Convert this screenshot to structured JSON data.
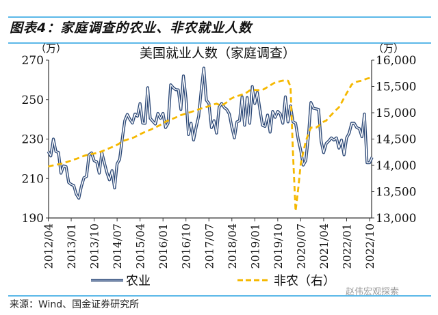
{
  "figure_title": "图表4：家庭调查的农业、非农就业人数",
  "source": "来源：Wind、国金证券研究所",
  "watermark": "赵伟宏观探索",
  "chart_data": {
    "type": "line",
    "title": "美国就业人数（家庭调查）",
    "left_unit": "（万）",
    "right_unit": "（万）",
    "x_start": "2012/04",
    "x_end": "2022/11",
    "frequency": "monthly",
    "x_tick_labels": [
      "2012/04",
      "2013/01",
      "2013/10",
      "2014/07",
      "2015/04",
      "2016/01",
      "2016/10",
      "2017/07",
      "2018/04",
      "2019/01",
      "2019/10",
      "2020/07",
      "2021/04",
      "2022/01",
      "2022/10"
    ],
    "x_tick_step_months": 9,
    "y_left": {
      "range": [
        190,
        270
      ],
      "ticks": [
        "190",
        "210",
        "230",
        "250",
        "270"
      ]
    },
    "y_right": {
      "range": [
        13000,
        16000
      ],
      "ticks": [
        "13,000",
        "13,500",
        "14,000",
        "14,500",
        "15,000",
        "15,500",
        "16,000"
      ]
    },
    "grid": false,
    "legend_position": "bottom",
    "colors": {
      "farm": "#2e4a78",
      "nonfarm": "#f5b800"
    },
    "series": [
      {
        "name": "农业",
        "axis": "left",
        "style": "double-line",
        "values": [
          223.7,
          221.4,
          230,
          223.7,
          223.2,
          212.7,
          216.4,
          216,
          208,
          207,
          206.4,
          202,
          200,
          206,
          210.4,
          211,
          222,
          223,
          219,
          218.5,
          212.7,
          223.2,
          218,
          213,
          209.3,
          214,
          205.2,
          217.4,
          219.7,
          230,
          239.3,
          242.5,
          240,
          238.1,
          242.7,
          241.6,
          248,
          238.1,
          238,
          256,
          240.5,
          239,
          237.6,
          243,
          240.5,
          243,
          235.8,
          238,
          257.5,
          256,
          255,
          254.9,
          245,
          262,
          250.8,
          232.3,
          238,
          229.5,
          236,
          241.6,
          255,
          266,
          249.7,
          248,
          235.8,
          239.3,
          233,
          246.2,
          248,
          246,
          245,
          242.7,
          236,
          230.6,
          238.7,
          239.3,
          251.4,
          237,
          251,
          238,
          256.6,
          248,
          253.7,
          245,
          237,
          236.4,
          242.2,
          233.5,
          244,
          241,
          244,
          242.7,
          238,
          251.4,
          238.7,
          246.8,
          238.7,
          238,
          230,
          224.3,
          216.8,
          219.1,
          231.2,
          248.5,
          245.6,
          245.3,
          245,
          229,
          223.1,
          227.8,
          229,
          230.6,
          229.5,
          230.6,
          225.4,
          229.5,
          222,
          230.6,
          233,
          238,
          238,
          235.8,
          235.3,
          231.2,
          242.7,
          218,
          218,
          220.8
        ]
      },
      {
        "name": "非农（右）",
        "axis": "right",
        "style": "dashed",
        "values": [
          13978,
          13990,
          14000,
          14010,
          14020,
          14030,
          14045,
          14060,
          14075,
          14090,
          14109,
          14125,
          14140,
          14160,
          14180,
          14195,
          14205,
          14215,
          14225,
          14236,
          14247,
          14267,
          14287,
          14307,
          14327,
          14347,
          14370,
          14390,
          14420,
          14456,
          14475,
          14490,
          14505,
          14520,
          14540,
          14565,
          14590,
          14615,
          14635,
          14655,
          14675,
          14700,
          14720,
          14745,
          14770,
          14800,
          14830,
          14850,
          14870,
          14890,
          14910,
          14930,
          14955,
          14970,
          14985,
          15000,
          15015,
          15030,
          15045,
          15065,
          15080,
          15095,
          15110,
          15125,
          15140,
          15160,
          15173,
          15150,
          15140,
          15165,
          15200,
          15250,
          15275,
          15300,
          15315,
          15330,
          15345,
          15360,
          15390,
          15425,
          15434,
          15432,
          15430,
          15432,
          15434,
          15460,
          15490,
          15520,
          15550,
          15575,
          15587,
          15600,
          15610,
          15612,
          15609,
          15500,
          14200,
          13130,
          13550,
          14022,
          14250,
          14456,
          14600,
          14717,
          14720,
          14717,
          14750,
          14790,
          14830,
          14850,
          14910,
          14960,
          15010,
          15060,
          15104,
          15190,
          15280,
          15370,
          15450,
          15538,
          15570,
          15590,
          15600,
          15609,
          15630,
          15650,
          15660,
          15674
        ]
      }
    ]
  }
}
